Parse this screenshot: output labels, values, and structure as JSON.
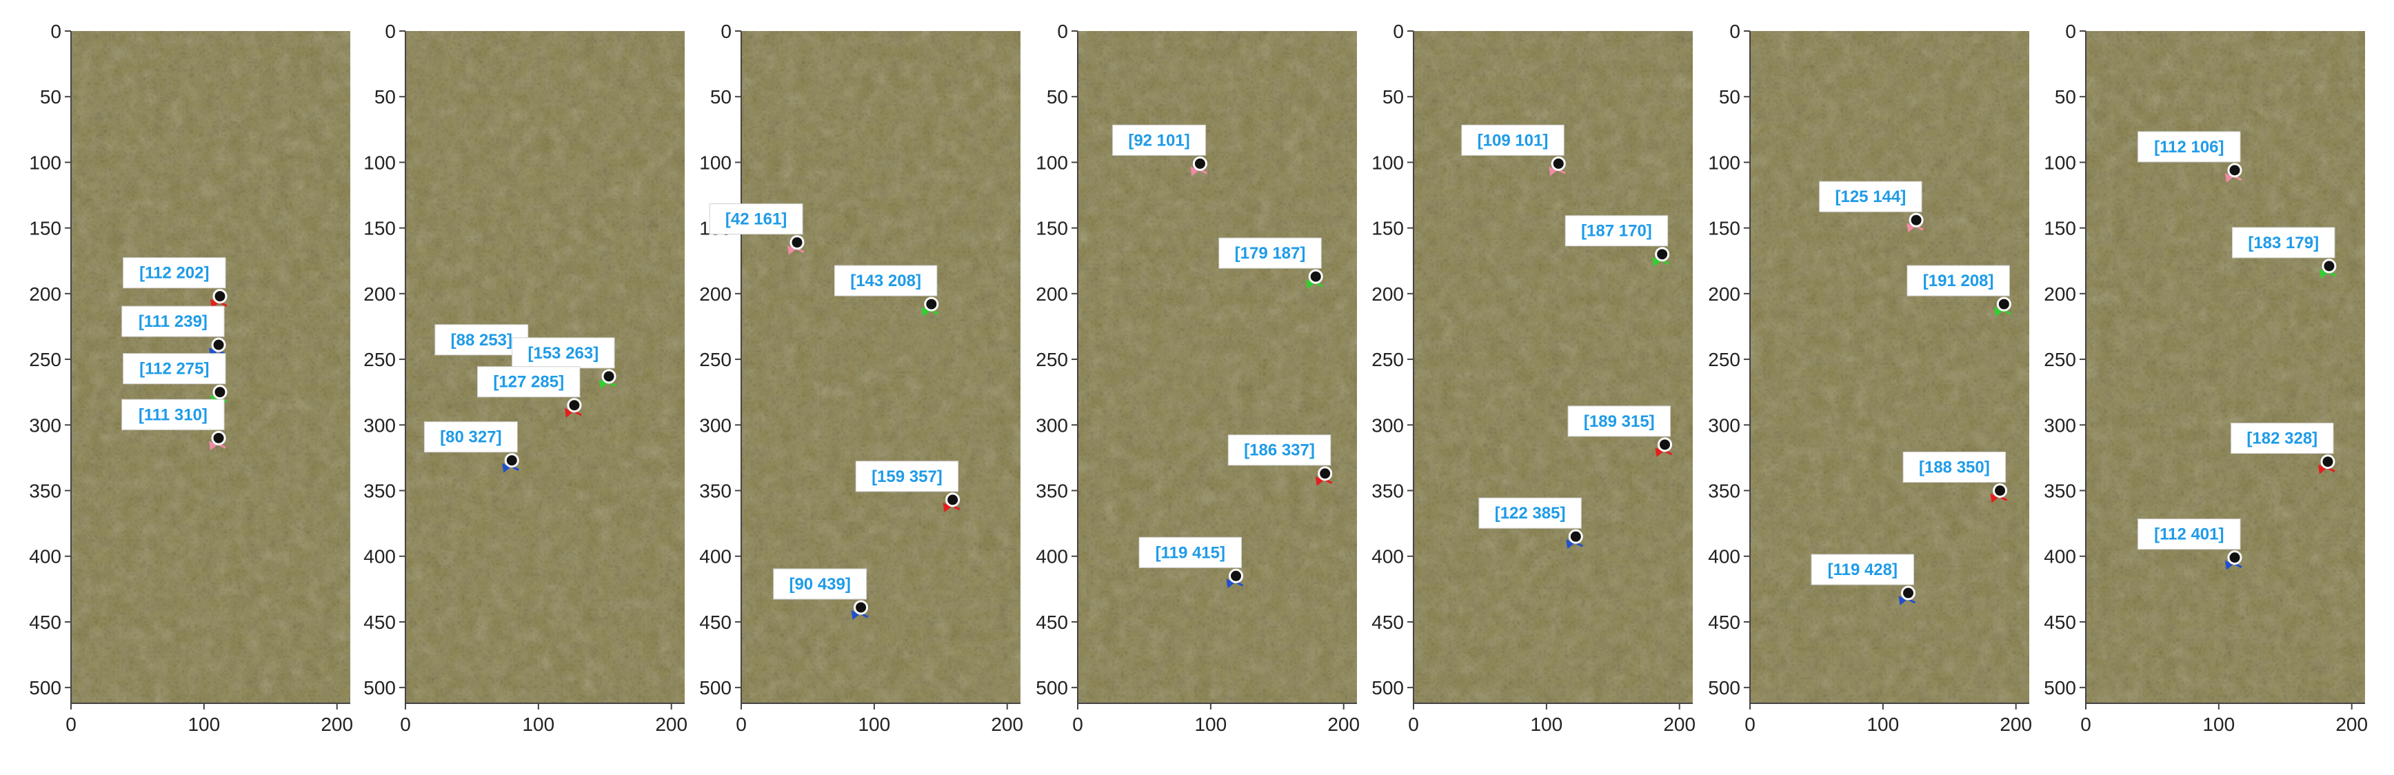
{
  "colors": {
    "texture_base": "#8d8552",
    "texture_light": "#b3aa72",
    "texture_dark": "#665f37",
    "label_text": "#1e9be8",
    "label_bg": "#ffffff",
    "marker_fill": "#111111",
    "marker_ring": "#ffffff",
    "arrow_red": "#e51d1d",
    "arrow_blue": "#1f4fcc",
    "arrow_green": "#2fd12f",
    "arrow_pink": "#f08aa6",
    "arrow_dark": "#222222"
  },
  "chart_data": [
    {
      "type": "scatter",
      "xlim": [
        0,
        210
      ],
      "ylim": [
        512,
        0
      ],
      "xticks": [
        0,
        100,
        200
      ],
      "yticks": [
        0,
        50,
        100,
        150,
        200,
        250,
        300,
        350,
        400,
        450,
        500
      ],
      "grid": false,
      "points": [
        {
          "x": 112,
          "y": 202,
          "label": "[112 202]",
          "arrow": "red"
        },
        {
          "x": 111,
          "y": 239,
          "label": "[111 239]",
          "arrow": "blue"
        },
        {
          "x": 112,
          "y": 275,
          "label": "[112 275]",
          "arrow": "green"
        },
        {
          "x": 111,
          "y": 310,
          "label": "[111 310]",
          "arrow": "pink"
        }
      ]
    },
    {
      "type": "scatter",
      "xlim": [
        0,
        210
      ],
      "ylim": [
        512,
        0
      ],
      "xticks": [
        0,
        100,
        200
      ],
      "yticks": [
        0,
        50,
        100,
        150,
        200,
        250,
        300,
        350,
        400,
        450,
        500
      ],
      "grid": false,
      "points": [
        {
          "x": 88,
          "y": 253,
          "label": "[88 253]",
          "arrow": "dark"
        },
        {
          "x": 153,
          "y": 263,
          "label": "[153 263]",
          "arrow": "green"
        },
        {
          "x": 127,
          "y": 285,
          "label": "[127 285]",
          "arrow": "red"
        },
        {
          "x": 80,
          "y": 327,
          "label": "[80 327]",
          "arrow": "blue"
        }
      ]
    },
    {
      "type": "scatter",
      "xlim": [
        0,
        210
      ],
      "ylim": [
        512,
        0
      ],
      "xticks": [
        0,
        100,
        200
      ],
      "yticks": [
        0,
        50,
        100,
        150,
        200,
        250,
        300,
        350,
        400,
        450,
        500
      ],
      "grid": false,
      "points": [
        {
          "x": 42,
          "y": 161,
          "label": "[42 161]",
          "arrow": "pink"
        },
        {
          "x": 143,
          "y": 208,
          "label": "[143 208]",
          "arrow": "green"
        },
        {
          "x": 159,
          "y": 357,
          "label": "[159 357]",
          "arrow": "red"
        },
        {
          "x": 90,
          "y": 439,
          "label": "[90 439]",
          "arrow": "blue"
        }
      ]
    },
    {
      "type": "scatter",
      "xlim": [
        0,
        210
      ],
      "ylim": [
        512,
        0
      ],
      "xticks": [
        0,
        100,
        200
      ],
      "yticks": [
        0,
        50,
        100,
        150,
        200,
        250,
        300,
        350,
        400,
        450,
        500
      ],
      "grid": false,
      "points": [
        {
          "x": 92,
          "y": 101,
          "label": "[92 101]",
          "arrow": "pink"
        },
        {
          "x": 179,
          "y": 187,
          "label": "[179 187]",
          "arrow": "green"
        },
        {
          "x": 186,
          "y": 337,
          "label": "[186 337]",
          "arrow": "red"
        },
        {
          "x": 119,
          "y": 415,
          "label": "[119 415]",
          "arrow": "blue"
        }
      ]
    },
    {
      "type": "scatter",
      "xlim": [
        0,
        210
      ],
      "ylim": [
        512,
        0
      ],
      "xticks": [
        0,
        100,
        200
      ],
      "yticks": [
        0,
        50,
        100,
        150,
        200,
        250,
        300,
        350,
        400,
        450,
        500
      ],
      "grid": false,
      "points": [
        {
          "x": 109,
          "y": 101,
          "label": "[109 101]",
          "arrow": "pink"
        },
        {
          "x": 187,
          "y": 170,
          "label": "[187 170]",
          "arrow": "green"
        },
        {
          "x": 189,
          "y": 315,
          "label": "[189 315]",
          "arrow": "red"
        },
        {
          "x": 122,
          "y": 385,
          "label": "[122 385]",
          "arrow": "blue"
        }
      ]
    },
    {
      "type": "scatter",
      "xlim": [
        0,
        210
      ],
      "ylim": [
        512,
        0
      ],
      "xticks": [
        0,
        100,
        200
      ],
      "yticks": [
        0,
        50,
        100,
        150,
        200,
        250,
        300,
        350,
        400,
        450,
        500
      ],
      "grid": false,
      "points": [
        {
          "x": 125,
          "y": 144,
          "label": "[125 144]",
          "arrow": "pink"
        },
        {
          "x": 191,
          "y": 208,
          "label": "[191 208]",
          "arrow": "green"
        },
        {
          "x": 188,
          "y": 350,
          "label": "[188 350]",
          "arrow": "red"
        },
        {
          "x": 119,
          "y": 428,
          "label": "[119 428]",
          "arrow": "blue"
        }
      ]
    },
    {
      "type": "scatter",
      "xlim": [
        0,
        210
      ],
      "ylim": [
        512,
        0
      ],
      "xticks": [
        0,
        100,
        200
      ],
      "yticks": [
        0,
        50,
        100,
        150,
        200,
        250,
        300,
        350,
        400,
        450,
        500
      ],
      "grid": false,
      "points": [
        {
          "x": 112,
          "y": 106,
          "label": "[112 106]",
          "arrow": "pink"
        },
        {
          "x": 183,
          "y": 179,
          "label": "[183 179]",
          "arrow": "green"
        },
        {
          "x": 182,
          "y": 328,
          "label": "[182 328]",
          "arrow": "red"
        },
        {
          "x": 112,
          "y": 401,
          "label": "[112 401]",
          "arrow": "blue"
        }
      ]
    }
  ]
}
